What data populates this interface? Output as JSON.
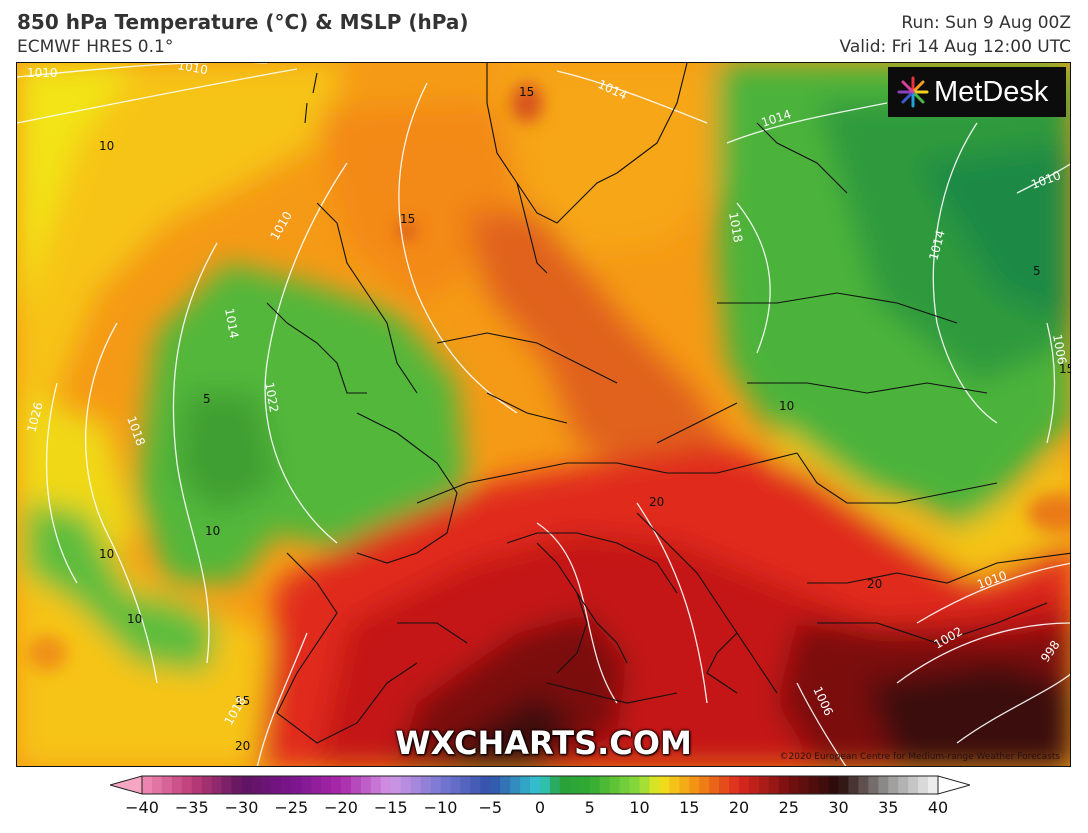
{
  "header": {
    "title": "850 hPa Temperature (°C) & MSLP (hPa)",
    "model": "ECMWF HRES 0.1°",
    "run": "Run: Sun 9 Aug 00Z",
    "valid": "Valid: Fri 14 Aug 12:00 UTC"
  },
  "logo": {
    "text": "MetDesk",
    "icon": "starburst-logo-icon"
  },
  "watermark": "WXCHARTS.COM",
  "copyright": "©2020 European Centre for Medium-range Weather Forecasts",
  "map": {
    "temperature_labels": [
      "10",
      "15",
      "15",
      "10",
      "5",
      "10",
      "10",
      "10",
      "15",
      "20",
      "20",
      "15",
      "20",
      "5"
    ],
    "pressure_labels": [
      "1010",
      "1010",
      "1014",
      "1014",
      "1010",
      "1014",
      "1018",
      "1018",
      "1026",
      "1022",
      "1014",
      "1010",
      "1010",
      "1006",
      "1002",
      "1006",
      "998",
      "1018"
    ]
  },
  "colorbar": {
    "ticks": [
      "−40",
      "−35",
      "−30",
      "−25",
      "−20",
      "−15",
      "−10",
      "−5",
      "0",
      "5",
      "10",
      "15",
      "20",
      "25",
      "30",
      "35",
      "40"
    ],
    "colors": {
      "min_arrow": "#f4a6c2",
      "max_arrow": "#ffffff"
    }
  }
}
